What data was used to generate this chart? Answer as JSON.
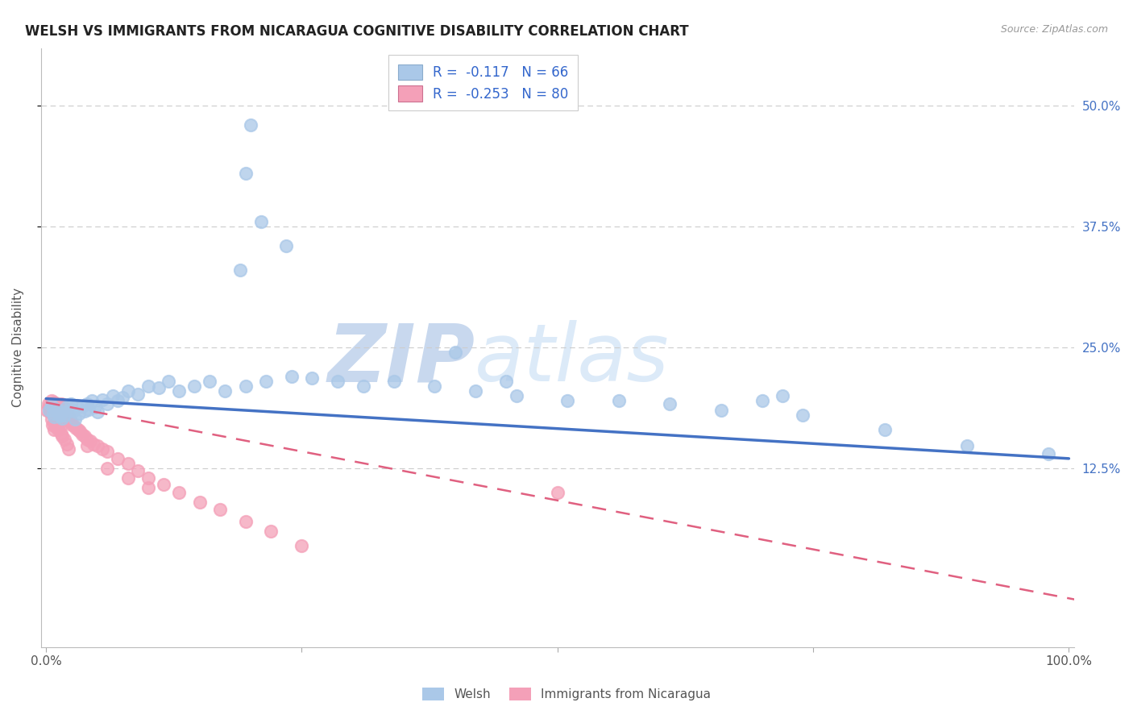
{
  "title": "WELSH VS IMMIGRANTS FROM NICARAGUA COGNITIVE DISABILITY CORRELATION CHART",
  "source": "Source: ZipAtlas.com",
  "ylabel": "Cognitive Disability",
  "ytick_labels": [
    "12.5%",
    "25.0%",
    "37.5%",
    "50.0%"
  ],
  "ytick_values": [
    0.125,
    0.25,
    0.375,
    0.5
  ],
  "xlim": [
    -0.005,
    1.005
  ],
  "ylim": [
    -0.06,
    0.56
  ],
  "legend_blue_label": "Welsh",
  "legend_pink_label": "Immigrants from Nicaragua",
  "r_blue": "-0.117",
  "n_blue": "66",
  "r_pink": "-0.253",
  "n_pink": "80",
  "blue_scatter_color": "#aac8e8",
  "blue_line_color": "#4472c4",
  "pink_scatter_color": "#f4a0b8",
  "pink_line_color": "#e06080",
  "watermark_color": "#dce9f8",
  "background_color": "#ffffff",
  "grid_color": "#cccccc",
  "title_color": "#222222",
  "source_color": "#999999",
  "axis_label_color": "#555555",
  "right_tick_color": "#4472c4",
  "bottom_tick_color": "#555555",
  "legend_text_color": "#3366cc",
  "bottom_legend_color": "#555555",
  "welsh_x": [
    0.003,
    0.005,
    0.007,
    0.008,
    0.01,
    0.012,
    0.013,
    0.015,
    0.016,
    0.018,
    0.02,
    0.022,
    0.024,
    0.025,
    0.027,
    0.028,
    0.03,
    0.032,
    0.035,
    0.038,
    0.04,
    0.042,
    0.045,
    0.048,
    0.05,
    0.055,
    0.06,
    0.065,
    0.07,
    0.075,
    0.08,
    0.09,
    0.1,
    0.11,
    0.12,
    0.13,
    0.145,
    0.16,
    0.175,
    0.195,
    0.215,
    0.24,
    0.26,
    0.285,
    0.31,
    0.34,
    0.38,
    0.42,
    0.46,
    0.51,
    0.56,
    0.61,
    0.66,
    0.74,
    0.82,
    0.9,
    0.98,
    0.2,
    0.195,
    0.21,
    0.235,
    0.19,
    0.4,
    0.45,
    0.7,
    0.72
  ],
  "welsh_y": [
    0.185,
    0.19,
    0.182,
    0.178,
    0.186,
    0.181,
    0.179,
    0.183,
    0.177,
    0.18,
    0.188,
    0.185,
    0.192,
    0.186,
    0.184,
    0.176,
    0.19,
    0.182,
    0.189,
    0.184,
    0.192,
    0.186,
    0.195,
    0.188,
    0.183,
    0.196,
    0.192,
    0.2,
    0.195,
    0.198,
    0.205,
    0.202,
    0.21,
    0.208,
    0.215,
    0.205,
    0.21,
    0.215,
    0.205,
    0.21,
    0.215,
    0.22,
    0.218,
    0.215,
    0.21,
    0.215,
    0.21,
    0.205,
    0.2,
    0.195,
    0.195,
    0.192,
    0.185,
    0.18,
    0.165,
    0.148,
    0.14,
    0.48,
    0.43,
    0.38,
    0.355,
    0.33,
    0.245,
    0.215,
    0.195,
    0.2
  ],
  "nic_x": [
    0.001,
    0.002,
    0.003,
    0.004,
    0.004,
    0.005,
    0.005,
    0.006,
    0.006,
    0.007,
    0.007,
    0.008,
    0.008,
    0.009,
    0.009,
    0.01,
    0.01,
    0.011,
    0.011,
    0.012,
    0.012,
    0.013,
    0.013,
    0.014,
    0.014,
    0.015,
    0.015,
    0.016,
    0.017,
    0.018,
    0.019,
    0.02,
    0.021,
    0.022,
    0.023,
    0.024,
    0.025,
    0.027,
    0.029,
    0.031,
    0.033,
    0.035,
    0.038,
    0.04,
    0.043,
    0.046,
    0.05,
    0.055,
    0.06,
    0.07,
    0.08,
    0.09,
    0.1,
    0.115,
    0.13,
    0.15,
    0.17,
    0.195,
    0.22,
    0.25,
    0.005,
    0.006,
    0.008,
    0.008,
    0.009,
    0.01,
    0.011,
    0.012,
    0.013,
    0.014,
    0.015,
    0.016,
    0.018,
    0.02,
    0.022,
    0.04,
    0.06,
    0.08,
    0.1,
    0.5
  ],
  "nic_y": [
    0.185,
    0.192,
    0.188,
    0.183,
    0.19,
    0.186,
    0.195,
    0.189,
    0.182,
    0.191,
    0.184,
    0.188,
    0.193,
    0.186,
    0.19,
    0.185,
    0.192,
    0.188,
    0.182,
    0.186,
    0.19,
    0.184,
    0.188,
    0.183,
    0.189,
    0.186,
    0.192,
    0.185,
    0.188,
    0.183,
    0.18,
    0.182,
    0.177,
    0.179,
    0.175,
    0.173,
    0.17,
    0.17,
    0.167,
    0.165,
    0.163,
    0.16,
    0.158,
    0.155,
    0.153,
    0.15,
    0.148,
    0.145,
    0.142,
    0.135,
    0.13,
    0.122,
    0.115,
    0.108,
    0.1,
    0.09,
    0.082,
    0.07,
    0.06,
    0.045,
    0.176,
    0.17,
    0.165,
    0.172,
    0.168,
    0.175,
    0.17,
    0.165,
    0.172,
    0.168,
    0.161,
    0.158,
    0.155,
    0.15,
    0.145,
    0.148,
    0.125,
    0.115,
    0.105,
    0.1
  ]
}
